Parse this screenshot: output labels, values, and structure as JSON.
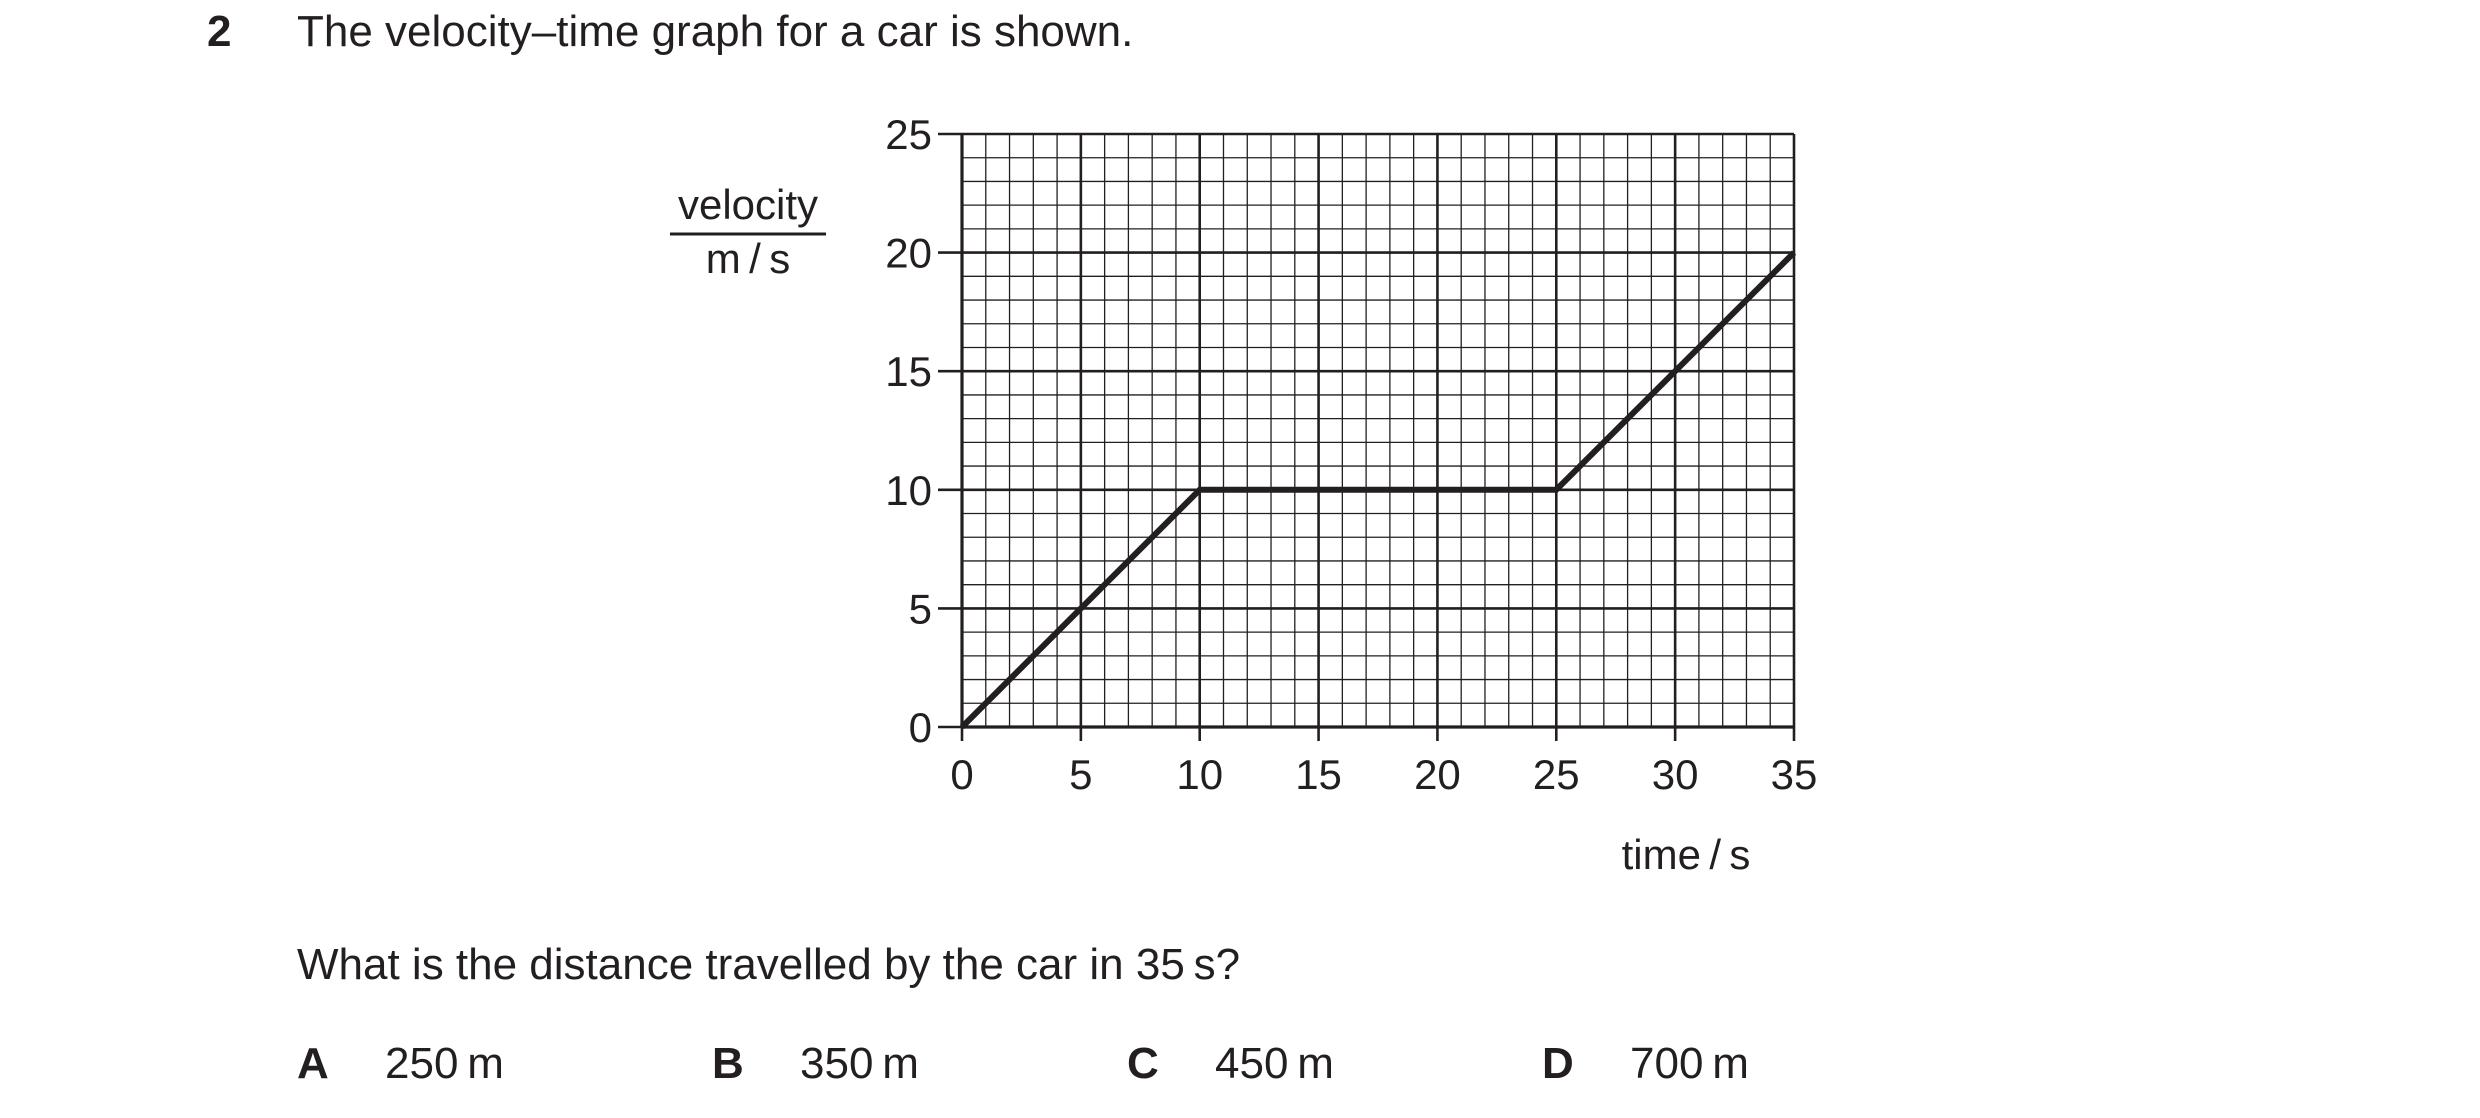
{
  "question": {
    "number": "2",
    "text": "The velocity–time graph for a car is shown.",
    "prompt": "What is the distance travelled by the car in 35 s?",
    "options": [
      {
        "letter": "A",
        "value": "250 m"
      },
      {
        "letter": "B",
        "value": "350 m"
      },
      {
        "letter": "C",
        "value": "450 m"
      },
      {
        "letter": "D",
        "value": "700 m"
      }
    ]
  },
  "chart_data": {
    "type": "line",
    "title": "",
    "xlabel": "time / s",
    "ylabel_top": "velocity",
    "ylabel_bottom": "m / s",
    "xlim": [
      0,
      35
    ],
    "ylim": [
      0,
      25
    ],
    "x_ticks": [
      0,
      5,
      10,
      15,
      20,
      25,
      30,
      35
    ],
    "y_ticks": [
      0,
      5,
      10,
      15,
      20,
      25
    ],
    "minor_grid_step": 1,
    "grid": true,
    "series": [
      {
        "x": [
          0,
          10,
          25,
          35
        ],
        "y": [
          0,
          10,
          10,
          20
        ]
      }
    ],
    "colors": {
      "ink": "#231f20"
    }
  }
}
